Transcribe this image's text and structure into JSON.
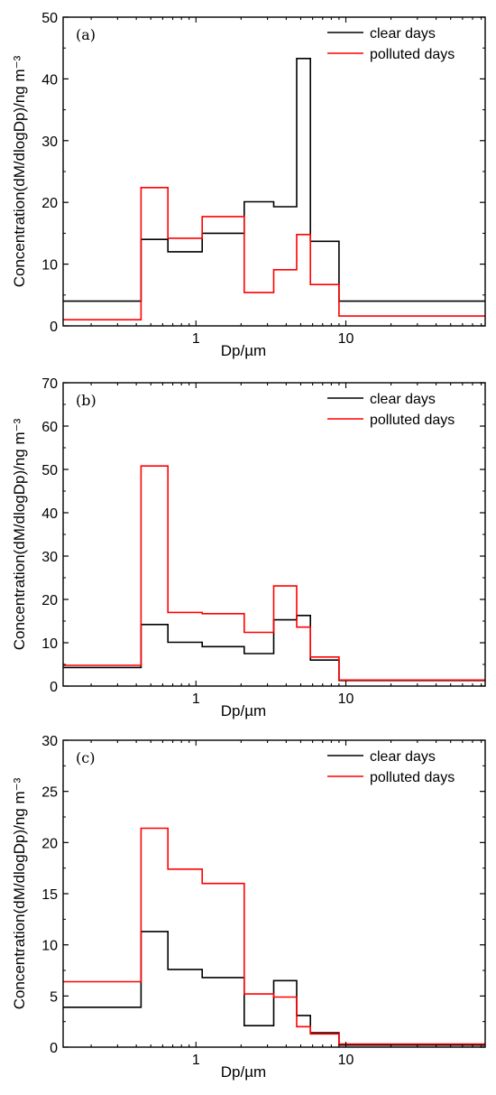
{
  "colors": {
    "clear": "#000000",
    "polluted": "#ff0000",
    "axis": "#000000"
  },
  "chart_data": [
    {
      "type": "line",
      "step": "histogram",
      "panel_label": "(a)",
      "xlabel": "Dp/µm",
      "ylabel": "Concentration(dM/dlogDp)/ng m⁻³",
      "xscale": "log",
      "xlim": [
        0.13,
        85
      ],
      "ylim": [
        0,
        50
      ],
      "yticks": [
        0,
        10,
        20,
        30,
        40,
        50
      ],
      "xticks": [
        1,
        10
      ],
      "xtick_labels": [
        "1",
        "10"
      ],
      "legend_position": "top-right",
      "bin_edges": [
        0.13,
        0.43,
        0.65,
        1.1,
        2.1,
        3.3,
        4.7,
        5.8,
        9.0,
        85
      ],
      "series": [
        {
          "name": "clear days",
          "color_key": "clear",
          "values": [
            4.0,
            14.0,
            12.0,
            15.0,
            20.1,
            19.3,
            43.3,
            13.7,
            4.0
          ]
        },
        {
          "name": "polluted days",
          "color_key": "polluted",
          "values": [
            1.0,
            22.4,
            14.2,
            17.7,
            5.4,
            9.1,
            14.8,
            6.7,
            1.6
          ]
        }
      ]
    },
    {
      "type": "line",
      "step": "histogram",
      "panel_label": "(b)",
      "xlabel": "Dp/µm",
      "ylabel": "Concentration(dM/dlogDp)/ng m⁻³",
      "xscale": "log",
      "xlim": [
        0.13,
        85
      ],
      "ylim": [
        0,
        70
      ],
      "yticks": [
        0,
        10,
        20,
        30,
        40,
        50,
        60,
        70
      ],
      "xticks": [
        1,
        10
      ],
      "xtick_labels": [
        "1",
        "10"
      ],
      "legend_position": "top-right",
      "bin_edges": [
        0.13,
        0.43,
        0.65,
        1.1,
        2.1,
        3.3,
        4.7,
        5.8,
        9.0,
        85
      ],
      "series": [
        {
          "name": "clear days",
          "color_key": "clear",
          "values": [
            4.3,
            14.2,
            10.1,
            9.1,
            7.5,
            15.3,
            16.3,
            6.0,
            1.3
          ]
        },
        {
          "name": "polluted days",
          "color_key": "polluted",
          "values": [
            4.8,
            50.8,
            17.0,
            16.7,
            12.4,
            23.1,
            13.6,
            6.7,
            1.4
          ]
        }
      ]
    },
    {
      "type": "line",
      "step": "histogram",
      "panel_label": "(c)",
      "xlabel": "Dp/µm",
      "ylabel": "Concentration(dM/dlogDp)/ng m⁻³",
      "xscale": "log",
      "xlim": [
        0.13,
        85
      ],
      "ylim": [
        0,
        30
      ],
      "yticks": [
        0,
        5,
        10,
        15,
        20,
        25,
        30
      ],
      "xticks": [
        1,
        10
      ],
      "xtick_labels": [
        "1",
        "10"
      ],
      "legend_position": "top-right",
      "bin_edges": [
        0.13,
        0.43,
        0.65,
        1.1,
        2.1,
        3.3,
        4.7,
        5.8,
        9.0,
        85
      ],
      "series": [
        {
          "name": "clear days",
          "color_key": "clear",
          "values": [
            3.9,
            11.3,
            7.6,
            6.8,
            2.1,
            6.5,
            3.1,
            1.4,
            0.2
          ]
        },
        {
          "name": "polluted days",
          "color_key": "polluted",
          "values": [
            6.4,
            21.4,
            17.4,
            16.0,
            5.2,
            4.9,
            2.0,
            1.3,
            0.3
          ]
        }
      ]
    }
  ]
}
